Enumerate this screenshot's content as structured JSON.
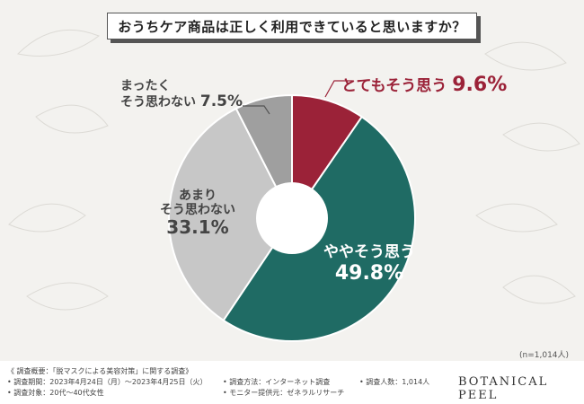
{
  "title": "おうちケア商品は正しく利用できていると思いますか？",
  "chart_data": {
    "type": "pie",
    "donut": true,
    "slices": [
      {
        "label": "とてもそう思う",
        "value": 9.6,
        "pct_label": "9.6%",
        "color": "#9b2238"
      },
      {
        "label": "ややそう思う",
        "value": 49.8,
        "pct_label": "49.8%",
        "color": "#1f6b64"
      },
      {
        "label": "あまりそう思わない",
        "value": 33.1,
        "pct_label": "33.1%",
        "color": "#c7c7c7"
      },
      {
        "label": "まったくそう思わない",
        "value": 7.5,
        "pct_label": "7.5%",
        "color": "#9f9f9f"
      }
    ]
  },
  "labels": {
    "red_text": "とてもそう思う",
    "red_pct": "9.6%",
    "gray1_line1": "まったく",
    "gray1_line2": "そう思わない",
    "gray1_pct": "7.5%",
    "gray2_line1": "あまり",
    "gray2_line2": "そう思わない",
    "gray2_pct": "33.1%",
    "green_text": "ややそう思う",
    "green_pct": "49.8%"
  },
  "sample_note": "(n=1,014人)",
  "footer": {
    "overview": "《 調査概要：「脱マスクによる美容対策」に関する調査》",
    "period": "• 調査期間：2023年4月24日（月）〜2023年4月25日（火）",
    "target": "• 調査対象：20代〜40代女性",
    "method": "• 調査方法：インターネット調査",
    "monitor": "• モニター提供元：ゼネラルリサーチ",
    "count": "• 調査人数：1,014人",
    "brand": "BOTANICAL PEEL"
  }
}
